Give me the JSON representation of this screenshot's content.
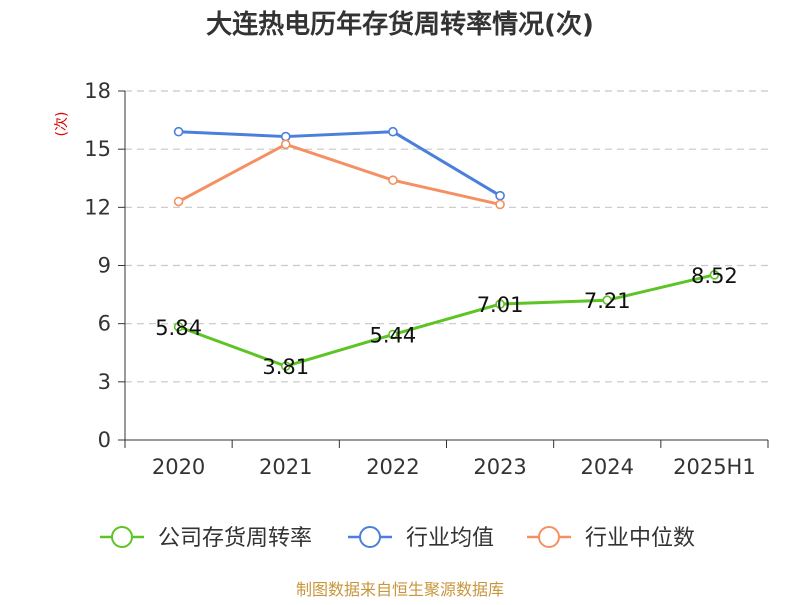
{
  "chart_data": {
    "type": "line",
    "title": "大连热电历年存货周转率情况(次)",
    "ylabel": "(次)",
    "xlabel": "",
    "categories": [
      "2020",
      "2021",
      "2022",
      "2023",
      "2024",
      "2025H1"
    ],
    "ylim": [
      0,
      18
    ],
    "yticks": [
      0,
      3,
      6,
      9,
      12,
      15,
      18
    ],
    "grid": true,
    "legend_position": "bottom",
    "series": [
      {
        "name": "公司存货周转率",
        "color": "#5cc424",
        "values": [
          5.84,
          3.81,
          5.44,
          7.01,
          7.21,
          8.52
        ],
        "labels": [
          "5.84",
          "3.81",
          "5.44",
          "7.01",
          "7.21",
          "8.52"
        ]
      },
      {
        "name": "行业均值",
        "color": "#4a7fdc",
        "values": [
          15.9,
          15.65,
          15.9,
          12.6,
          null,
          null
        ]
      },
      {
        "name": "行业中位数",
        "color": "#f59063",
        "values": [
          12.3,
          15.25,
          13.4,
          12.15,
          null,
          null
        ]
      }
    ],
    "source": "制图数据来自恒生聚源数据库"
  },
  "colors": {
    "axis": "#333333",
    "grid": "#c8c8c8",
    "unit": "#dd0000",
    "source": "#c8963c"
  }
}
